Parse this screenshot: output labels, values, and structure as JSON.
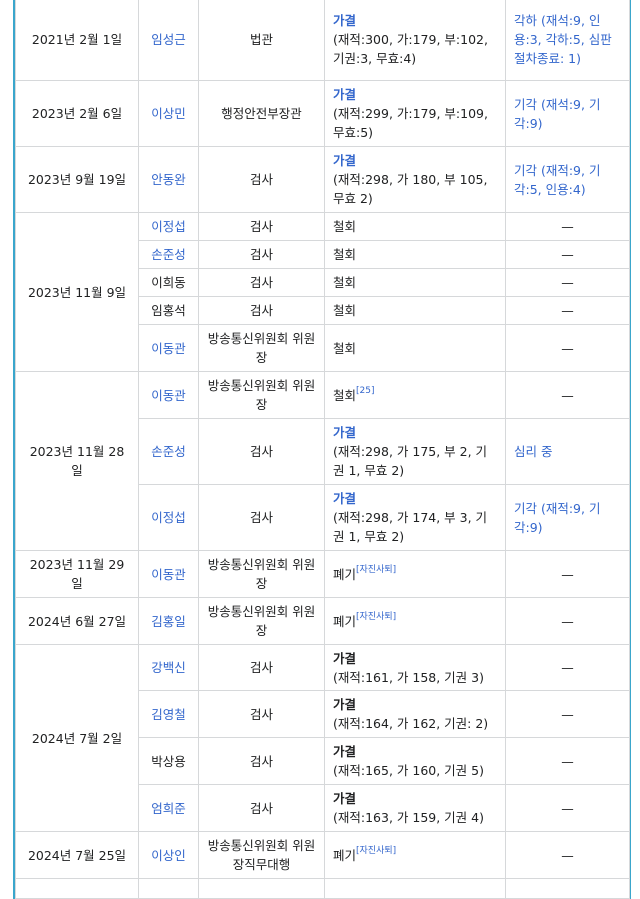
{
  "colors": {
    "link": "#3366cc",
    "border": "#3aa6cc",
    "grid": "#d6d8da"
  },
  "groups": [
    {
      "date": "2021년 2월 1일",
      "rows": [
        {
          "name": "임성근",
          "link": true,
          "position": "법관",
          "vote": {
            "label": "가결",
            "label_link": true,
            "detail": "(재적:300, 가:179, 부:102, 기권:3, 무효:4)"
          },
          "result": {
            "text": "각하 (재석:9, 인용:3, 각하:5, 심판절차종료: 1)",
            "link": true
          }
        }
      ]
    },
    {
      "date": "2023년 2월 6일",
      "rows": [
        {
          "name": "이상민",
          "link": true,
          "position": "행정안전부장관",
          "vote": {
            "label": "가결",
            "label_link": true,
            "detail": "(재적:299, 가:179, 부:109, 무효:5)"
          },
          "result": {
            "text": "기각 (재석:9, 기각:9)",
            "link": true
          }
        }
      ]
    },
    {
      "date": "2023년 9월 19일",
      "rows": [
        {
          "name": "안동완",
          "link": true,
          "position": "검사",
          "vote": {
            "label": "가결",
            "label_link": true,
            "detail": "(재적:298, 가 180, 부 105, 무효 2)"
          },
          "result": {
            "text": "기각 (재적:9, 기각:5, 인용:4)",
            "link": true
          }
        }
      ]
    },
    {
      "date": "2023년 11월 9일",
      "rows": [
        {
          "name": "이정섭",
          "link": true,
          "position": "검사",
          "vote": {
            "label": "철회"
          },
          "result": {
            "text": "—"
          }
        },
        {
          "name": "손준성",
          "link": true,
          "position": "검사",
          "vote": {
            "label": "철회"
          },
          "result": {
            "text": "—"
          }
        },
        {
          "name": "이희동",
          "link": false,
          "position": "검사",
          "vote": {
            "label": "철회"
          },
          "result": {
            "text": "—"
          }
        },
        {
          "name": "임홍석",
          "link": false,
          "position": "검사",
          "vote": {
            "label": "철회"
          },
          "result": {
            "text": "—"
          }
        },
        {
          "name": "이동관",
          "link": true,
          "position": "방송통신위원회 위원장",
          "vote": {
            "label": "철회"
          },
          "result": {
            "text": "—"
          }
        }
      ]
    },
    {
      "date": "2023년 11월 28일",
      "rows": [
        {
          "name": "이동관",
          "link": true,
          "position": "방송통신위원회 위원장",
          "vote": {
            "label": "철회",
            "ref": "[25]"
          },
          "result": {
            "text": "—"
          }
        },
        {
          "name": "손준성",
          "link": true,
          "position": "검사",
          "vote": {
            "label": "가결",
            "label_link": true,
            "detail": "(재적:298, 가 175, 부 2, 기권 1, 무효 2)"
          },
          "result": {
            "text": "심리 중",
            "link": true
          }
        },
        {
          "name": "이정섭",
          "link": true,
          "position": "검사",
          "vote": {
            "label": "가결",
            "label_link": true,
            "detail": "(재적:298, 가 174, 부 3, 기권 1, 무효 2)"
          },
          "result": {
            "text": "기각 (재적:9, 기각:9)",
            "link": true
          }
        }
      ]
    },
    {
      "date": "2023년 11월 29일",
      "rows": [
        {
          "name": "이동관",
          "link": true,
          "position": "방송통신위원회 위원장",
          "vote": {
            "label": "폐기",
            "ref": "[자진사퇴]"
          },
          "result": {
            "text": "—"
          }
        }
      ]
    },
    {
      "date": "2024년 6월 27일",
      "rows": [
        {
          "name": "김홍일",
          "link": true,
          "position": "방송통신위원회 위원장",
          "vote": {
            "label": "폐기",
            "ref": "[자진사퇴]"
          },
          "result": {
            "text": "—"
          }
        }
      ]
    },
    {
      "date": "2024년 7월 2일",
      "rows": [
        {
          "name": "강백신",
          "link": true,
          "position": "검사",
          "vote": {
            "label": "가결",
            "bold": true,
            "detail": "(재적:161, 가 158, 기권 3)"
          },
          "result": {
            "text": "—"
          }
        },
        {
          "name": "김영철",
          "link": true,
          "position": "검사",
          "vote": {
            "label": "가결",
            "bold": true,
            "detail": "(재적:164, 가 162, 기권: 2)"
          },
          "result": {
            "text": "—"
          }
        },
        {
          "name": "박상용",
          "link": false,
          "position": "검사",
          "vote": {
            "label": "가결",
            "bold": true,
            "detail": "(재적:165, 가 160, 기권 5)"
          },
          "result": {
            "text": "—"
          }
        },
        {
          "name": "엄희준",
          "link": true,
          "position": "검사",
          "vote": {
            "label": "가결",
            "bold": true,
            "detail": "(재적:163, 가 159, 기권 4)"
          },
          "result": {
            "text": "—"
          }
        }
      ]
    },
    {
      "date": "2024년 7월 25일",
      "rows": [
        {
          "name": "이상인",
          "link": true,
          "position": "방송통신위원회 위원장직무대행",
          "vote": {
            "label": "폐기",
            "ref": "[자진사퇴]"
          },
          "result": {
            "text": "—"
          }
        }
      ]
    }
  ]
}
